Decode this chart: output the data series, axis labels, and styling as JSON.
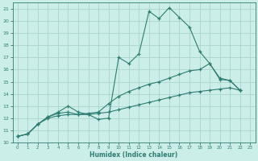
{
  "xlabel": "Humidex (Indice chaleur)",
  "bg_color": "#cceee8",
  "grid_color": "#aad4ce",
  "line_color": "#2e7d72",
  "xlim": [
    -0.5,
    23.5
  ],
  "ylim": [
    10,
    21.5
  ],
  "xticks": [
    0,
    1,
    2,
    3,
    4,
    5,
    6,
    7,
    8,
    9,
    10,
    11,
    12,
    13,
    14,
    15,
    16,
    17,
    18,
    19,
    20,
    21,
    22,
    23
  ],
  "yticks": [
    10,
    11,
    12,
    13,
    14,
    15,
    16,
    17,
    18,
    19,
    20,
    21
  ],
  "series1_x": [
    0,
    1,
    2,
    3,
    4,
    5,
    6,
    7,
    8,
    9,
    10,
    11,
    12,
    13,
    14,
    15,
    16,
    17,
    18,
    19,
    20,
    21,
    22
  ],
  "series1_y": [
    10.5,
    10.7,
    11.5,
    12.1,
    12.5,
    13.0,
    12.5,
    12.3,
    11.9,
    12.0,
    17.0,
    16.5,
    17.3,
    20.8,
    20.2,
    21.1,
    20.3,
    19.5,
    17.5,
    16.5,
    15.2,
    15.1,
    14.3
  ],
  "series2_x": [
    0,
    1,
    2,
    3,
    4,
    5,
    6,
    7,
    8,
    9,
    10,
    11,
    12,
    13,
    14,
    15,
    16,
    17,
    18,
    19,
    20,
    21,
    22
  ],
  "series2_y": [
    10.5,
    10.7,
    11.5,
    12.1,
    12.4,
    12.5,
    12.3,
    12.4,
    12.5,
    13.2,
    13.8,
    14.2,
    14.5,
    14.8,
    15.0,
    15.3,
    15.6,
    15.9,
    16.0,
    16.5,
    15.3,
    15.1,
    14.3
  ],
  "series3_x": [
    0,
    1,
    2,
    3,
    4,
    5,
    6,
    7,
    8,
    9,
    10,
    11,
    12,
    13,
    14,
    15,
    16,
    17,
    18,
    19,
    20,
    21,
    22
  ],
  "series3_y": [
    10.5,
    10.7,
    11.5,
    12.0,
    12.2,
    12.3,
    12.3,
    12.3,
    12.4,
    12.5,
    12.7,
    12.9,
    13.1,
    13.3,
    13.5,
    13.7,
    13.9,
    14.1,
    14.2,
    14.3,
    14.4,
    14.5,
    14.3
  ]
}
